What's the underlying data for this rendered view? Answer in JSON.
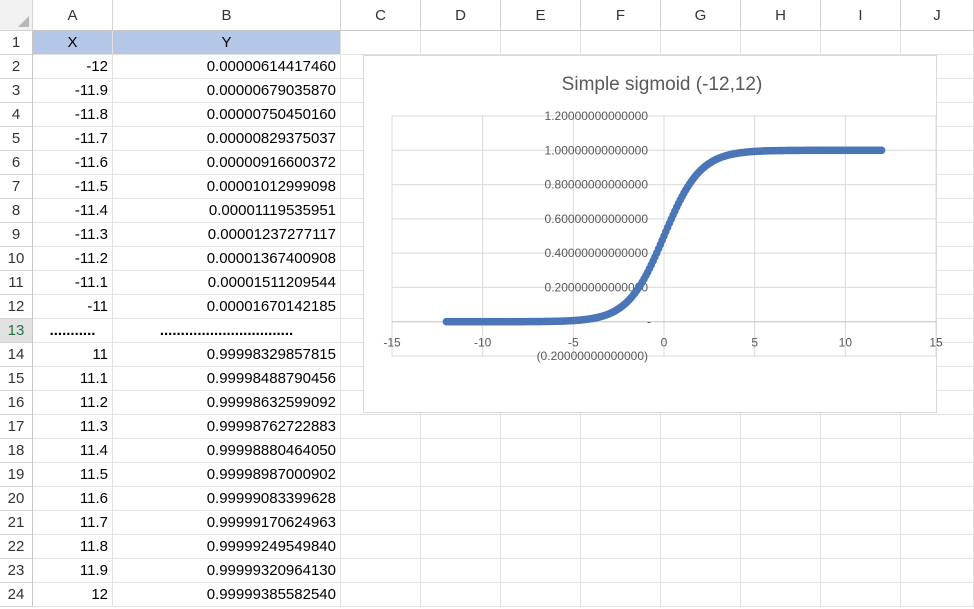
{
  "columns": [
    "A",
    "B",
    "C",
    "D",
    "E",
    "F",
    "G",
    "H",
    "I",
    "J"
  ],
  "rows": [
    {
      "n": "1",
      "x": "X",
      "y": "Y",
      "type": "header"
    },
    {
      "n": "2",
      "x": "-12",
      "y": "0.00000614417460"
    },
    {
      "n": "3",
      "x": "-11.9",
      "y": "0.00000679035870"
    },
    {
      "n": "4",
      "x": "-11.8",
      "y": "0.00000750450160"
    },
    {
      "n": "5",
      "x": "-11.7",
      "y": "0.00000829375037"
    },
    {
      "n": "6",
      "x": "-11.6",
      "y": "0.00000916600372"
    },
    {
      "n": "7",
      "x": "-11.5",
      "y": "0.00001012999098"
    },
    {
      "n": "8",
      "x": "-11.4",
      "y": "0.00001119535951"
    },
    {
      "n": "9",
      "x": "-11.3",
      "y": "0.00001237277117"
    },
    {
      "n": "10",
      "x": "-11.2",
      "y": "0.00001367400908"
    },
    {
      "n": "11",
      "x": "-11.1",
      "y": "0.00001511209544"
    },
    {
      "n": "12",
      "x": "-11",
      "y": "0.00001670142185"
    },
    {
      "n": "13",
      "x": "...........",
      "y": "................................",
      "type": "dots"
    },
    {
      "n": "14",
      "x": "11",
      "y": "0.99998329857815"
    },
    {
      "n": "15",
      "x": "11.1",
      "y": "0.99998488790456"
    },
    {
      "n": "16",
      "x": "11.2",
      "y": "0.99998632599092"
    },
    {
      "n": "17",
      "x": "11.3",
      "y": "0.99998762722883"
    },
    {
      "n": "18",
      "x": "11.4",
      "y": "0.99998880464050"
    },
    {
      "n": "19",
      "x": "11.5",
      "y": "0.99998987000902"
    },
    {
      "n": "20",
      "x": "11.6",
      "y": "0.99999083399628"
    },
    {
      "n": "21",
      "x": "11.7",
      "y": "0.99999170624963"
    },
    {
      "n": "22",
      "x": "11.8",
      "y": "0.99999249549840"
    },
    {
      "n": "23",
      "x": "11.9",
      "y": "0.99999320964130"
    },
    {
      "n": "24",
      "x": "12",
      "y": "0.99999385582540"
    }
  ],
  "selected_row": "13",
  "colors": {
    "header_fill": "#b4c7e7",
    "series": "#4a76b8",
    "gridline": "#d9d9d9",
    "axis_text": "#595959"
  },
  "chart_data": {
    "type": "scatter",
    "title": "Simple sigmoid (-12,12)",
    "xlim": [
      -15,
      15
    ],
    "ylim": [
      -0.2,
      1.2
    ],
    "x_ticks": [
      -15,
      -10,
      -5,
      0,
      5,
      10,
      15
    ],
    "x_tick_labels": [
      "-15",
      "-10",
      "-5",
      "0",
      "5",
      "10",
      "15"
    ],
    "y_ticks": [
      -0.2,
      0,
      0.2,
      0.4,
      0.6,
      0.8,
      1.0,
      1.2
    ],
    "y_tick_labels": [
      "(0.20000000000000)",
      "-",
      "0.20000000000000",
      "0.40000000000000",
      "0.60000000000000",
      "0.80000000000000",
      "1.00000000000000",
      "1.20000000000000"
    ],
    "grid": true,
    "series": [
      {
        "function": "sigmoid",
        "x_start": -12,
        "x_end": 12,
        "x_step": 0.1
      }
    ]
  }
}
